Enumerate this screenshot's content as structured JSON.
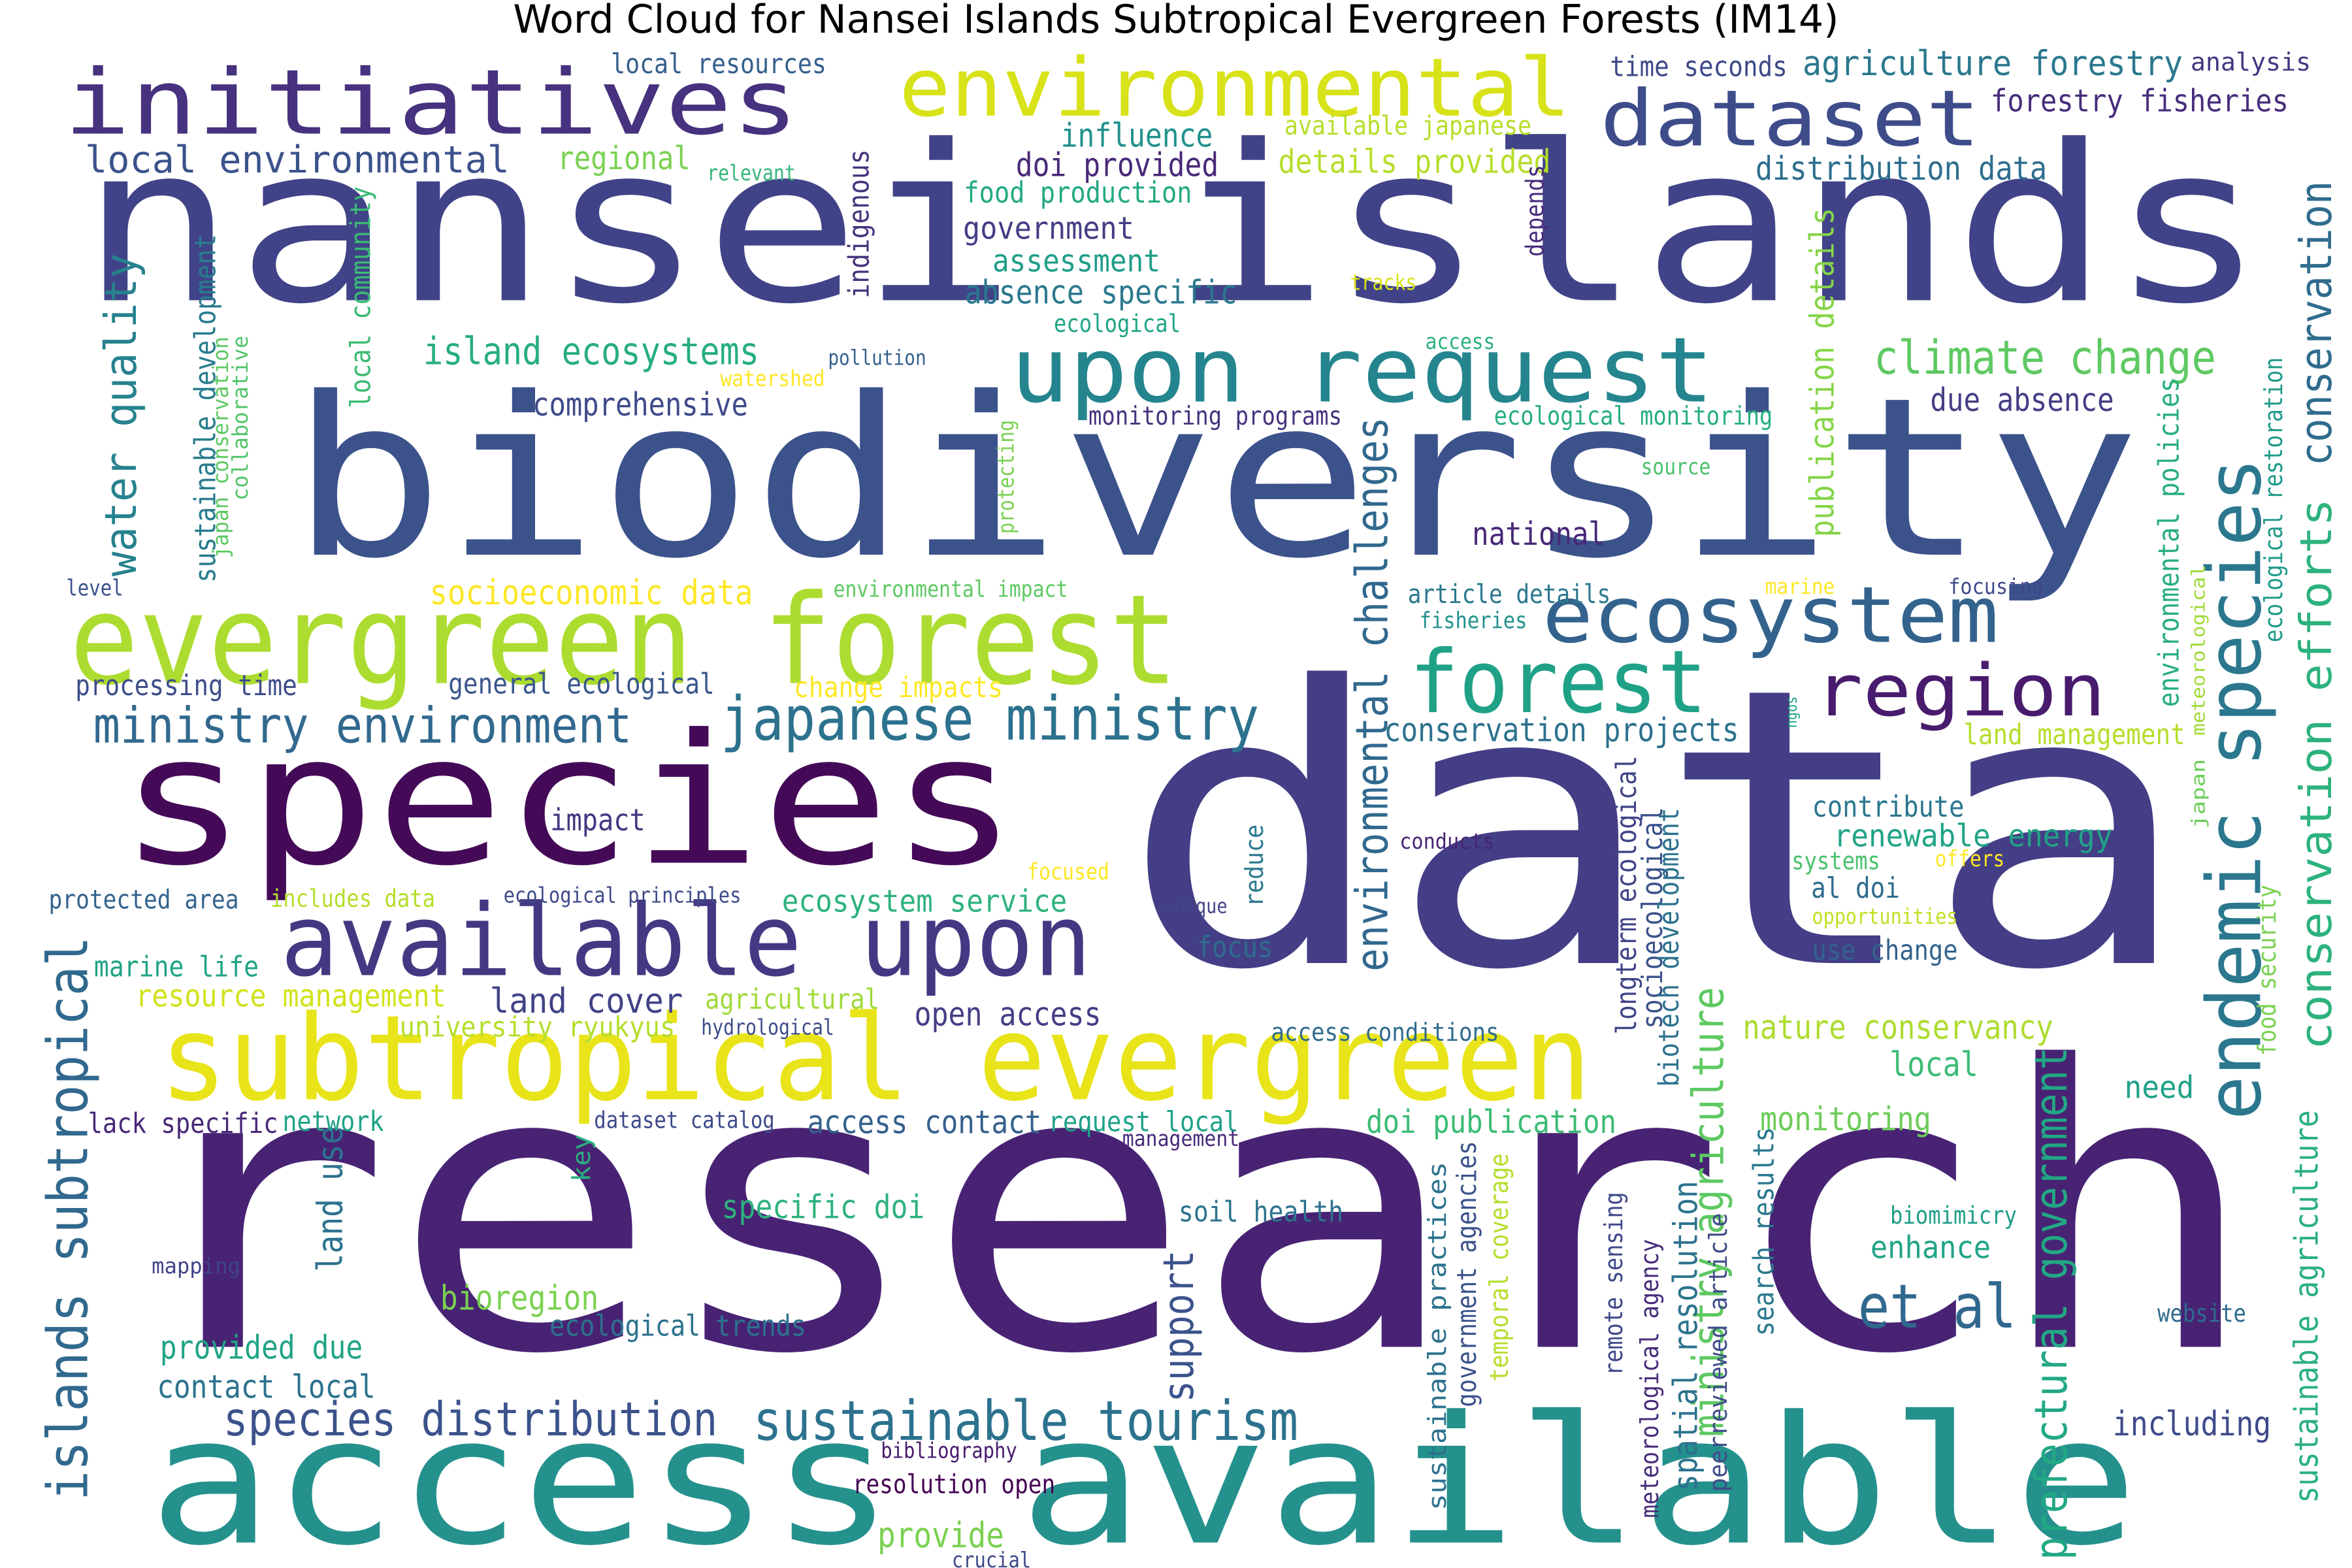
{
  "title": "Word Cloud for Nansei Islands Subtropical Evergreen Forests (IM14)",
  "words": [
    {
      "text": "data",
      "color": "#433e85"
    },
    {
      "text": "research",
      "color": "#482374"
    },
    {
      "text": "nansei islands",
      "color": "#404387"
    },
    {
      "text": "biodiversity",
      "color": "#3b528b"
    },
    {
      "text": "access available",
      "color": "#25918d"
    },
    {
      "text": "species",
      "color": "#440a57"
    },
    {
      "text": "evergreen forest",
      "color": "#addc30"
    },
    {
      "text": "subtropical evergreen",
      "color": "#e8e419"
    },
    {
      "text": "initiatives",
      "color": "#46327e"
    },
    {
      "text": "available upon",
      "color": "#453882"
    },
    {
      "text": "environmental",
      "color": "#d8e219"
    },
    {
      "text": "dataset",
      "color": "#3e4c8a"
    },
    {
      "text": "upon request",
      "color": "#25858e"
    },
    {
      "text": "ecosystem",
      "color": "#33638d"
    },
    {
      "text": "forest",
      "color": "#1fa187"
    },
    {
      "text": "region",
      "color": "#481b6d"
    },
    {
      "text": "endemic species",
      "color": "#2a778e"
    },
    {
      "text": "japanese ministry",
      "color": "#2c728e"
    },
    {
      "text": "ministry environment",
      "color": "#31688e"
    },
    {
      "text": "climate change",
      "color": "#5ec962"
    },
    {
      "text": "conservation efforts",
      "color": "#2db27d"
    },
    {
      "text": "conservation",
      "color": "#2f6c8e"
    },
    {
      "text": "sustainable tourism",
      "color": "#2c728e"
    },
    {
      "text": "islands subtropical",
      "color": "#31688e"
    },
    {
      "text": "species distribution",
      "color": "#3b528b"
    },
    {
      "text": "environmental challenges",
      "color": "#31688e"
    },
    {
      "text": "prefectural government",
      "color": "#22a884"
    },
    {
      "text": "ministry agriculture",
      "color": "#5ec962"
    },
    {
      "text": "water quality",
      "color": "#26828e"
    },
    {
      "text": "local environmental",
      "color": "#3b528b"
    },
    {
      "text": "island ecosystems",
      "color": "#27ad81"
    },
    {
      "text": "et al",
      "color": "#31688e"
    },
    {
      "text": "local",
      "color": "#3bbb75"
    },
    {
      "text": "land use",
      "color": "#2c728e"
    },
    {
      "text": "support",
      "color": "#3b528b"
    },
    {
      "text": "agriculture forestry",
      "color": "#2a788e"
    },
    {
      "text": "forestry fisheries",
      "color": "#472d7b"
    },
    {
      "text": "local resources",
      "color": "#355f8d"
    },
    {
      "text": "time seconds",
      "color": "#3e4989"
    },
    {
      "text": "analysis",
      "color": "#453781"
    },
    {
      "text": "influence",
      "color": "#21918c"
    },
    {
      "text": "available japanese",
      "color": "#b5de2b"
    },
    {
      "text": "doi provided",
      "color": "#482878"
    },
    {
      "text": "details provided",
      "color": "#b5de2b"
    },
    {
      "text": "regional",
      "color": "#7ad151"
    },
    {
      "text": "relevant",
      "color": "#35b779"
    },
    {
      "text": "distribution data",
      "color": "#2e6e8e"
    },
    {
      "text": "food production",
      "color": "#23a983"
    },
    {
      "text": "government",
      "color": "#433e85"
    },
    {
      "text": "assessment",
      "color": "#1f9e89"
    },
    {
      "text": "absence specific",
      "color": "#2a788e"
    },
    {
      "text": "indigenous",
      "color": "#46337e"
    },
    {
      "text": "ecological",
      "color": "#20a486"
    },
    {
      "text": "tracks",
      "color": "#d8e219"
    },
    {
      "text": "depends",
      "color": "#472c7a"
    },
    {
      "text": "access",
      "color": "#2db27d"
    },
    {
      "text": "pollution",
      "color": "#34618d"
    },
    {
      "text": "watershed",
      "color": "#fde725"
    },
    {
      "text": "comprehensive",
      "color": "#3e4a89"
    },
    {
      "text": "monitoring programs",
      "color": "#46337e"
    },
    {
      "text": "ecological monitoring",
      "color": "#27ad81"
    },
    {
      "text": "due absence",
      "color": "#433e85"
    },
    {
      "text": "sustainable development",
      "color": "#287c8e"
    },
    {
      "text": "japan conservation",
      "color": "#5ec962"
    },
    {
      "text": "collaborative",
      "color": "#52c569"
    },
    {
      "text": "local community",
      "color": "#3bbb75"
    },
    {
      "text": "protecting",
      "color": "#7ad151"
    },
    {
      "text": "source",
      "color": "#4ac16d"
    },
    {
      "text": "publication details",
      "color": "#86d549"
    },
    {
      "text": "national",
      "color": "#482878"
    },
    {
      "text": "environmental policies",
      "color": "#27ad81"
    },
    {
      "text": "ecological restoration",
      "color": "#1f9a8a"
    },
    {
      "text": "level",
      "color": "#3b528b"
    },
    {
      "text": "socioeconomic data",
      "color": "#fde725"
    },
    {
      "text": "environmental impact",
      "color": "#5ec962"
    },
    {
      "text": "article details",
      "color": "#2a788e"
    },
    {
      "text": "marine",
      "color": "#fde725"
    },
    {
      "text": "focusing",
      "color": "#3e4989"
    },
    {
      "text": "fisheries",
      "color": "#21918c"
    },
    {
      "text": "meteorological",
      "color": "#a0da39"
    },
    {
      "text": "processing time",
      "color": "#3e4c8a"
    },
    {
      "text": "general ecological",
      "color": "#39568c"
    },
    {
      "text": "change impacts",
      "color": "#fde725"
    },
    {
      "text": "conservation projects",
      "color": "#2c728e"
    },
    {
      "text": "land management",
      "color": "#b5de2b"
    },
    {
      "text": "japan",
      "color": "#6ccd5a"
    },
    {
      "text": "ngos",
      "color": "#20a486"
    },
    {
      "text": "food security",
      "color": "#7ad151"
    },
    {
      "text": "impact",
      "color": "#453781"
    },
    {
      "text": "longterm ecological",
      "color": "#404588"
    },
    {
      "text": "socioecological",
      "color": "#3b528b"
    },
    {
      "text": "biotech development",
      "color": "#2c728e"
    },
    {
      "text": "contribute",
      "color": "#2a768e"
    },
    {
      "text": "renewable energy",
      "color": "#20a386"
    },
    {
      "text": "conducts",
      "color": "#482475"
    },
    {
      "text": "reduce",
      "color": "#2a788e"
    },
    {
      "text": "systems",
      "color": "#4ac16d"
    },
    {
      "text": "offers",
      "color": "#fde725"
    },
    {
      "text": "al doi",
      "color": "#2f6c8e"
    },
    {
      "text": "focused",
      "color": "#fde725"
    },
    {
      "text": "protected area",
      "color": "#33638d"
    },
    {
      "text": "includes data",
      "color": "#b5de2b"
    },
    {
      "text": "ecological principles",
      "color": "#3e4a89"
    },
    {
      "text": "ecosystem service",
      "color": "#2db27d"
    },
    {
      "text": "unique",
      "color": "#414487"
    },
    {
      "text": "opportunities",
      "color": "#c2df23"
    },
    {
      "text": "marine life",
      "color": "#20a386"
    },
    {
      "text": "focus",
      "color": "#2f6c8e"
    },
    {
      "text": "use change",
      "color": "#33638d"
    },
    {
      "text": "resource management",
      "color": "#d2e21b"
    },
    {
      "text": "land cover",
      "color": "#404387"
    },
    {
      "text": "agricultural",
      "color": "#a0da39"
    },
    {
      "text": "open access",
      "color": "#433e85"
    },
    {
      "text": "university ryukyus",
      "color": "#b5de2b"
    },
    {
      "text": "hydrological",
      "color": "#3e4c8a"
    },
    {
      "text": "access conditions",
      "color": "#2f6c8e"
    },
    {
      "text": "nature conservancy",
      "color": "#addc30"
    },
    {
      "text": "lack specific",
      "color": "#482878"
    },
    {
      "text": "network",
      "color": "#20a386"
    },
    {
      "text": "dataset catalog",
      "color": "#3e4a89"
    },
    {
      "text": "access contact",
      "color": "#34608d"
    },
    {
      "text": "request local",
      "color": "#1fa188"
    },
    {
      "text": "doi publication",
      "color": "#3bbb75"
    },
    {
      "text": "monitoring",
      "color": "#6ccd5a"
    },
    {
      "text": "need",
      "color": "#1fa188"
    },
    {
      "text": "management",
      "color": "#472a7a"
    },
    {
      "text": "key",
      "color": "#2ab07f"
    },
    {
      "text": "specific doi",
      "color": "#2db27d"
    },
    {
      "text": "soil health",
      "color": "#2c728e"
    },
    {
      "text": "sustainable practices",
      "color": "#2c728e"
    },
    {
      "text": "government agencies",
      "color": "#3b528b"
    },
    {
      "text": "temporal coverage",
      "color": "#b5de2b"
    },
    {
      "text": "remote sensing",
      "color": "#3e4989"
    },
    {
      "text": "meteorological agency",
      "color": "#472c7a"
    },
    {
      "text": "spatial resolution",
      "color": "#2c728e"
    },
    {
      "text": "peerreviewed article",
      "color": "#3e4c8a"
    },
    {
      "text": "search results",
      "color": "#2a788e"
    },
    {
      "text": "biomimicry",
      "color": "#1f9e89"
    },
    {
      "text": "enhance",
      "color": "#20a386"
    },
    {
      "text": "sustainable agriculture",
      "color": "#2ab07f"
    },
    {
      "text": "mapping",
      "color": "#414487"
    },
    {
      "text": "bioregion",
      "color": "#7ad151"
    },
    {
      "text": "ecological trends",
      "color": "#2c728e"
    },
    {
      "text": "provided due",
      "color": "#20a386"
    },
    {
      "text": "website",
      "color": "#2f6c8e"
    },
    {
      "text": "contact local",
      "color": "#2c728e"
    },
    {
      "text": "including",
      "color": "#3e4a89"
    },
    {
      "text": "bibliography",
      "color": "#481b6d"
    },
    {
      "text": "resolution open",
      "color": "#440154"
    },
    {
      "text": "provide",
      "color": "#7ad151"
    },
    {
      "text": "crucial",
      "color": "#3e4989"
    }
  ]
}
